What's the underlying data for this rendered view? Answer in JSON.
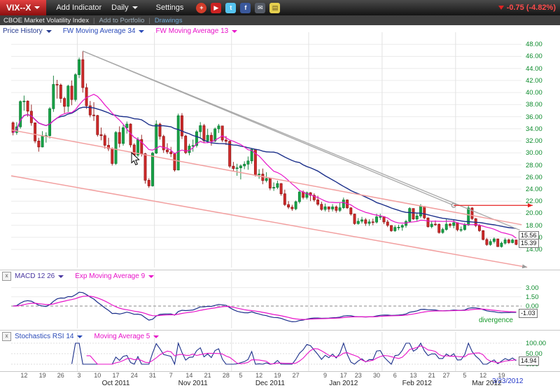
{
  "toolbar": {
    "symbol": "VIX--X",
    "add_indicator": "Add Indicator",
    "period": "Daily",
    "settings": "Settings",
    "icons": [
      {
        "name": "googleplus-icon",
        "glyph": "+",
        "bg": "#d23c2a",
        "fg": "#ffffff",
        "round": true
      },
      {
        "name": "youtube-icon",
        "glyph": "▶",
        "bg": "#cc2222",
        "fg": "#ffffff",
        "round": false
      },
      {
        "name": "twitter-icon",
        "glyph": "t",
        "bg": "#55c3ee",
        "fg": "#ffffff",
        "round": false
      },
      {
        "name": "facebook-icon",
        "glyph": "f",
        "bg": "#3a589b",
        "fg": "#ffffff",
        "round": false
      },
      {
        "name": "email-icon",
        "glyph": "✉",
        "bg": "#555b66",
        "fg": "#ffffff",
        "round": false
      },
      {
        "name": "annotation-icon",
        "glyph": "▤",
        "bg": "#e5cf4e",
        "fg": "#665522",
        "round": false
      }
    ],
    "change": "-0.75 (-4.82%)"
  },
  "subbar": {
    "index_name": "CBOE Market Volatility Index",
    "add_to_portfolio": "Add to Portfolio",
    "drawings": "Drawings"
  },
  "ui": {
    "close_glyph": "x"
  },
  "legend": {
    "price_history": "Price History",
    "ma34": "FW Moving Average 34",
    "ma13": "FW Moving Average 13"
  },
  "panels": {
    "macd": {
      "title": "MACD 12 26",
      "signal_label": "Exp Moving Average 9",
      "axis": [
        "3.00",
        "1.50",
        "0.00"
      ],
      "badge": "-1.03",
      "divergence": "divergence"
    },
    "stoch": {
      "title": "Stochastics RSI 14",
      "ma_label": "Moving Average 5",
      "axis": [
        "100.00",
        "50.00",
        "0.00"
      ],
      "badge": "14.94"
    }
  },
  "price_axis": {
    "badges": [
      "15.56",
      "15.39"
    ]
  },
  "xaxis": {
    "date_label": "3/23/2012"
  },
  "chart_data": {
    "type": "candlestick",
    "title": "CBOE Market Volatility Index",
    "symbol": "VIX--X",
    "timeframe": "Daily",
    "y_range": [
      11,
      50
    ],
    "y_ticks": [
      "48.00",
      "46.00",
      "44.00",
      "42.00",
      "40.00",
      "38.00",
      "36.00",
      "34.00",
      "32.00",
      "30.00",
      "28.00",
      "26.00",
      "24.00",
      "22.00",
      "20.00",
      "18.00",
      "16.00",
      "14.00"
    ],
    "x_ticks": [
      {
        "t": "12",
        "ci": 3
      },
      {
        "t": "19",
        "ci": 8
      },
      {
        "t": "26",
        "ci": 13
      },
      {
        "t": "3",
        "ci": 18
      },
      {
        "t": "10",
        "ci": 23
      },
      {
        "t": "17",
        "ci": 28
      },
      {
        "t": "24",
        "ci": 33
      },
      {
        "t": "31",
        "ci": 38
      },
      {
        "t": "7",
        "ci": 43
      },
      {
        "t": "14",
        "ci": 48
      },
      {
        "t": "21",
        "ci": 53
      },
      {
        "t": "28",
        "ci": 58
      },
      {
        "t": "5",
        "ci": 62
      },
      {
        "t": "12",
        "ci": 67
      },
      {
        "t": "19",
        "ci": 72
      },
      {
        "t": "27",
        "ci": 77
      },
      {
        "t": "9",
        "ci": 85
      },
      {
        "t": "17",
        "ci": 90
      },
      {
        "t": "23",
        "ci": 94
      },
      {
        "t": "30",
        "ci": 99
      },
      {
        "t": "6",
        "ci": 104
      },
      {
        "t": "13",
        "ci": 109
      },
      {
        "t": "21",
        "ci": 114
      },
      {
        "t": "27",
        "ci": 118
      },
      {
        "t": "5",
        "ci": 123
      },
      {
        "t": "12",
        "ci": 128
      },
      {
        "t": "19",
        "ci": 133
      }
    ],
    "x_months": [
      {
        "t": "Oct 2011",
        "ci": 28
      },
      {
        "t": "Nov 2011",
        "ci": 49
      },
      {
        "t": "Dec 2011",
        "ci": 70
      },
      {
        "t": "Jan 2012",
        "ci": 90
      },
      {
        "t": "Feb 2012",
        "ci": 110
      },
      {
        "t": "Mar 2012",
        "ci": 129
      }
    ],
    "month_start_ci": [
      18,
      39,
      60,
      81,
      101,
      121
    ],
    "overlays": [
      {
        "name": "FW Moving Average 34",
        "period": 34,
        "color": "#1b2f8a"
      },
      {
        "name": "FW Moving Average 13",
        "period": 13,
        "color": "#e813c9"
      }
    ],
    "macd": {
      "fast": 12,
      "slow": 26,
      "signal": 9,
      "last": "-1.03"
    },
    "stochastics": {
      "rsi_period": 14,
      "ma_period": 5,
      "last": "14.94"
    },
    "colors": {
      "up": "#19a347",
      "up_stroke": "#0b7a33",
      "down": "#cf2b2b",
      "down_stroke": "#8f1414",
      "grid": "#ebebeb",
      "month_grid": "#e2e2e2",
      "trend_gray": "#a8a8a8",
      "channel_pink": "#f2a0a0",
      "ray_red": "#e62222",
      "axis_text": "#0a8a2a"
    },
    "drawings": [
      {
        "type": "trendline",
        "from": [
          19,
          46.88
        ],
        "to": [
          138,
          17.2
        ],
        "color": "#a8a8a8",
        "width": 1.3
      },
      {
        "type": "trendline",
        "from": [
          19,
          46.88
        ],
        "to": [
          120,
          21.3
        ],
        "color": "#a8a8a8",
        "width": 1.3,
        "end_handle": true
      },
      {
        "type": "ray",
        "from": [
          120,
          21.3
        ],
        "to": [
          141.5,
          21.3
        ],
        "color": "#e62222",
        "width": 1.3,
        "arrow": true
      },
      {
        "type": "trendline",
        "from": [
          -0.5,
          33.8
        ],
        "to": [
          138.5,
          18.1
        ],
        "color": "#f2a0a0",
        "width": 1.5
      },
      {
        "type": "trendline",
        "from": [
          -0.5,
          26.2
        ],
        "to": [
          140,
          11.05
        ],
        "color": "#f2a0a0",
        "width": 1.5,
        "end_arrow_gray": true
      }
    ],
    "pointer": {
      "x": 188,
      "y": 218
    },
    "candles": [
      [
        35.0,
        35.2,
        32.9,
        33.38
      ],
      [
        33.38,
        35.1,
        33.0,
        34.32
      ],
      [
        34.32,
        38.7,
        34.0,
        38.52
      ],
      [
        38.52,
        39.5,
        37.0,
        38.59
      ],
      [
        38.59,
        38.7,
        36.0,
        36.91
      ],
      [
        36.91,
        38.0,
        34.5,
        34.99
      ],
      [
        34.99,
        35.0,
        31.6,
        31.97
      ],
      [
        31.97,
        32.5,
        30.2,
        30.98
      ],
      [
        30.98,
        33.6,
        30.9,
        32.74
      ],
      [
        32.74,
        33.4,
        31.7,
        32.86
      ],
      [
        32.86,
        37.6,
        32.4,
        37.32
      ],
      [
        37.32,
        42.8,
        36.8,
        41.35
      ],
      [
        41.35,
        42.1,
        39.0,
        41.25
      ],
      [
        41.25,
        41.5,
        38.3,
        39.02
      ],
      [
        39.02,
        39.3,
        36.6,
        37.71
      ],
      [
        37.71,
        41.3,
        36.8,
        41.08
      ],
      [
        41.08,
        42.0,
        37.9,
        38.84
      ],
      [
        38.84,
        43.2,
        38.5,
        42.96
      ],
      [
        42.96,
        45.8,
        42.4,
        45.45
      ],
      [
        45.45,
        46.88,
        40.0,
        40.82
      ],
      [
        40.82,
        41.5,
        37.3,
        37.81
      ],
      [
        37.81,
        38.6,
        35.9,
        36.28
      ],
      [
        36.28,
        38.4,
        35.3,
        36.2
      ],
      [
        36.2,
        36.3,
        32.7,
        33.02
      ],
      [
        33.02,
        34.2,
        32.1,
        32.86
      ],
      [
        32.86,
        33.2,
        30.7,
        31.26
      ],
      [
        31.26,
        32.5,
        30.3,
        30.7
      ],
      [
        30.7,
        30.9,
        27.9,
        28.24
      ],
      [
        28.24,
        33.6,
        28.0,
        33.39
      ],
      [
        33.39,
        34.4,
        30.9,
        31.56
      ],
      [
        31.56,
        34.6,
        31.2,
        34.17
      ],
      [
        34.17,
        35.2,
        33.2,
        34.78
      ],
      [
        34.78,
        34.9,
        30.9,
        31.32
      ],
      [
        31.32,
        31.6,
        29.2,
        29.64
      ],
      [
        29.64,
        32.6,
        29.3,
        32.22
      ],
      [
        32.22,
        33.0,
        29.4,
        29.86
      ],
      [
        29.86,
        30.0,
        24.9,
        25.46
      ],
      [
        25.46,
        25.8,
        24.2,
        24.53
      ],
      [
        24.53,
        30.2,
        24.4,
        29.96
      ],
      [
        29.96,
        35.4,
        29.8,
        34.77
      ],
      [
        34.77,
        35.0,
        32.2,
        32.74
      ],
      [
        32.74,
        33.0,
        30.0,
        30.5
      ],
      [
        30.5,
        31.6,
        29.8,
        30.16
      ],
      [
        30.16,
        31.0,
        29.3,
        29.85
      ],
      [
        29.85,
        30.0,
        26.9,
        27.16
      ],
      [
        27.16,
        36.5,
        27.1,
        36.16
      ],
      [
        36.16,
        36.6,
        32.3,
        32.8
      ],
      [
        32.8,
        33.0,
        29.8,
        30.04
      ],
      [
        30.04,
        31.5,
        29.6,
        31.13
      ],
      [
        31.13,
        32.2,
        30.2,
        31.22
      ],
      [
        31.22,
        33.8,
        30.9,
        33.51
      ],
      [
        33.51,
        35.1,
        32.4,
        34.51
      ],
      [
        34.51,
        34.8,
        31.6,
        32.0
      ],
      [
        32.0,
        34.0,
        31.6,
        32.92
      ],
      [
        32.92,
        33.4,
        31.2,
        31.97
      ],
      [
        31.97,
        34.2,
        31.8,
        33.98
      ],
      [
        33.98,
        34.8,
        33.3,
        34.47
      ],
      [
        34.47,
        34.5,
        31.8,
        32.13
      ],
      [
        32.13,
        32.8,
        31.3,
        31.93
      ],
      [
        31.93,
        32.0,
        27.5,
        27.8
      ],
      [
        27.8,
        28.5,
        26.9,
        27.41
      ],
      [
        27.41,
        28.2,
        26.2,
        27.52
      ],
      [
        27.52,
        28.1,
        25.6,
        27.84
      ],
      [
        27.84,
        28.6,
        27.3,
        28.13
      ],
      [
        28.13,
        29.4,
        27.2,
        28.67
      ],
      [
        28.67,
        30.8,
        28.2,
        30.59
      ],
      [
        30.59,
        30.6,
        26.1,
        26.38
      ],
      [
        26.38,
        27.3,
        25.7,
        26.49
      ],
      [
        26.49,
        27.4,
        24.8,
        25.41
      ],
      [
        25.41,
        26.8,
        25.1,
        25.76
      ],
      [
        25.76,
        25.9,
        23.8,
        24.17
      ],
      [
        24.17,
        25.1,
        23.7,
        24.29
      ],
      [
        24.29,
        25.4,
        24.0,
        24.92
      ],
      [
        24.92,
        25.0,
        22.9,
        23.22
      ],
      [
        23.22,
        23.9,
        21.2,
        21.43
      ],
      [
        21.43,
        22.0,
        20.7,
        21.01
      ],
      [
        21.01,
        21.4,
        20.4,
        20.73
      ],
      [
        20.73,
        22.1,
        20.5,
        21.91
      ],
      [
        21.91,
        23.7,
        21.6,
        23.52
      ],
      [
        23.52,
        23.8,
        22.3,
        22.62
      ],
      [
        22.62,
        23.6,
        22.3,
        23.4
      ],
      [
        23.4,
        23.5,
        22.0,
        22.97
      ],
      [
        22.97,
        23.3,
        21.9,
        22.22
      ],
      [
        22.22,
        22.9,
        21.2,
        21.48
      ],
      [
        21.48,
        21.9,
        20.4,
        20.63
      ],
      [
        20.63,
        21.6,
        20.3,
        21.07
      ],
      [
        21.07,
        21.1,
        20.2,
        20.69
      ],
      [
        20.69,
        21.5,
        20.3,
        21.05
      ],
      [
        21.05,
        21.3,
        20.1,
        20.47
      ],
      [
        20.47,
        21.7,
        20.2,
        20.91
      ],
      [
        20.91,
        22.6,
        20.7,
        22.2
      ],
      [
        22.2,
        22.3,
        20.7,
        20.89
      ],
      [
        20.89,
        21.0,
        19.6,
        19.87
      ],
      [
        19.87,
        19.9,
        18.1,
        18.28
      ],
      [
        18.28,
        19.2,
        18.1,
        18.67
      ],
      [
        18.67,
        19.4,
        18.3,
        18.91
      ],
      [
        18.91,
        19.2,
        17.9,
        18.31
      ],
      [
        18.31,
        19.0,
        17.9,
        18.57
      ],
      [
        18.57,
        19.1,
        18.0,
        18.53
      ],
      [
        18.53,
        19.9,
        18.3,
        19.4
      ],
      [
        19.4,
        19.9,
        18.9,
        19.44
      ],
      [
        19.44,
        19.5,
        18.2,
        18.55
      ],
      [
        18.55,
        18.9,
        17.7,
        17.98
      ],
      [
        17.98,
        18.0,
        16.9,
        17.1
      ],
      [
        17.1,
        18.0,
        16.9,
        17.65
      ],
      [
        17.65,
        18.1,
        17.2,
        17.69
      ],
      [
        17.69,
        18.2,
        17.1,
        17.97
      ],
      [
        17.97,
        18.9,
        17.6,
        18.64
      ],
      [
        18.64,
        21.0,
        18.5,
        20.79
      ],
      [
        20.79,
        20.8,
        18.9,
        19.04
      ],
      [
        19.04,
        20.1,
        18.7,
        19.54
      ],
      [
        19.54,
        21.5,
        19.2,
        21.14
      ],
      [
        21.14,
        21.2,
        19.0,
        19.22
      ],
      [
        19.22,
        19.3,
        17.6,
        17.78
      ],
      [
        17.78,
        18.7,
        17.5,
        18.19
      ],
      [
        18.19,
        18.8,
        17.9,
        18.17
      ],
      [
        18.17,
        18.3,
        16.6,
        16.8
      ],
      [
        16.8,
        17.6,
        16.6,
        17.31
      ],
      [
        17.31,
        19.0,
        17.1,
        18.19
      ],
      [
        18.19,
        18.4,
        17.6,
        17.96
      ],
      [
        17.96,
        18.9,
        17.5,
        18.43
      ],
      [
        18.43,
        18.5,
        17.0,
        17.26
      ],
      [
        17.26,
        17.8,
        16.9,
        17.29
      ],
      [
        17.29,
        18.4,
        17.1,
        18.05
      ],
      [
        18.05,
        21.2,
        17.9,
        20.87
      ],
      [
        20.87,
        21.0,
        18.9,
        19.1
      ],
      [
        19.1,
        19.2,
        17.7,
        17.95
      ],
      [
        17.95,
        18.2,
        16.9,
        17.11
      ],
      [
        17.11,
        17.2,
        15.5,
        15.64
      ],
      [
        15.64,
        15.9,
        14.6,
        14.8
      ],
      [
        14.8,
        15.7,
        14.6,
        15.31
      ],
      [
        15.31,
        16.0,
        15.0,
        15.74
      ],
      [
        15.74,
        15.8,
        14.4,
        14.47
      ],
      [
        14.47,
        15.3,
        14.3,
        15.04
      ],
      [
        15.04,
        15.9,
        14.8,
        15.58
      ],
      [
        15.58,
        15.8,
        14.9,
        15.13
      ],
      [
        15.13,
        15.8,
        15.0,
        15.57
      ],
      [
        15.57,
        15.6,
        14.7,
        14.82
      ]
    ]
  }
}
